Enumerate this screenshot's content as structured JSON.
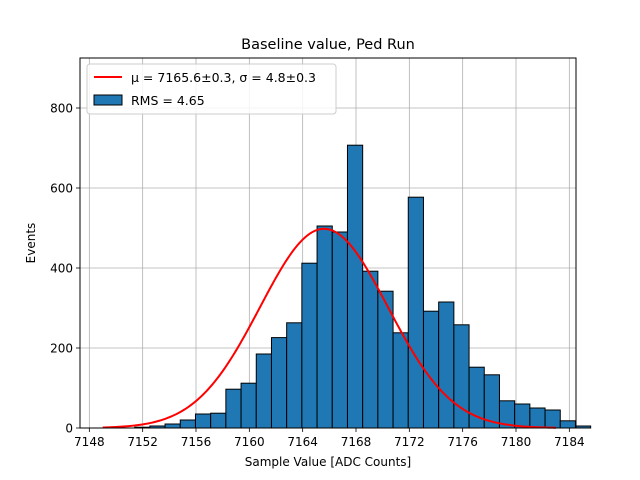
{
  "chart_data": {
    "type": "histogram",
    "title": "Baseline value, Ped Run",
    "xlabel": "Sample Value [ADC Counts]",
    "ylabel": "Events",
    "xlim": [
      7147.3,
      7184.5
    ],
    "ylim": [
      0,
      925
    ],
    "xticks": [
      7148,
      7152,
      7156,
      7160,
      7164,
      7168,
      7172,
      7176,
      7180,
      7184
    ],
    "yticks": [
      0,
      200,
      400,
      600,
      800
    ],
    "grid": true,
    "legend_position": "top-left",
    "bar_color": "#1f77b4",
    "fit_color": "#ff0000",
    "bin_width": 1.14,
    "bins": [
      {
        "left": 7151.4,
        "count": 2
      },
      {
        "left": 7152.54,
        "count": 5
      },
      {
        "left": 7153.68,
        "count": 10
      },
      {
        "left": 7154.82,
        "count": 20
      },
      {
        "left": 7155.96,
        "count": 35
      },
      {
        "left": 7157.1,
        "count": 37
      },
      {
        "left": 7158.24,
        "count": 97
      },
      {
        "left": 7159.38,
        "count": 112
      },
      {
        "left": 7160.52,
        "count": 185
      },
      {
        "left": 7161.66,
        "count": 226
      },
      {
        "left": 7162.8,
        "count": 263
      },
      {
        "left": 7163.94,
        "count": 412
      },
      {
        "left": 7165.08,
        "count": 505
      },
      {
        "left": 7166.22,
        "count": 490
      },
      {
        "left": 7167.36,
        "count": 707
      },
      {
        "left": 7168.5,
        "count": 392
      },
      {
        "left": 7169.64,
        "count": 342
      },
      {
        "left": 7170.78,
        "count": 238
      },
      {
        "left": 7171.92,
        "count": 577
      },
      {
        "left": 7173.06,
        "count": 292
      },
      {
        "left": 7174.2,
        "count": 315
      },
      {
        "left": 7175.34,
        "count": 258
      },
      {
        "left": 7176.48,
        "count": 152
      },
      {
        "left": 7177.62,
        "count": 133
      },
      {
        "left": 7178.76,
        "count": 68
      },
      {
        "left": 7179.9,
        "count": 60
      },
      {
        "left": 7181.04,
        "count": 50
      },
      {
        "left": 7182.18,
        "count": 45
      },
      {
        "left": 7183.32,
        "count": 18
      },
      {
        "left": 7184.46,
        "count": 5
      }
    ],
    "fit": {
      "type": "gaussian",
      "mu": 7165.6,
      "sigma": 4.8,
      "amplitude": 498,
      "x_range": [
        7149,
        7183
      ]
    },
    "legend": {
      "fit_label": "μ = 7165.6±0.3, σ = 4.8±0.3",
      "hist_label": "RMS = 4.65"
    }
  }
}
